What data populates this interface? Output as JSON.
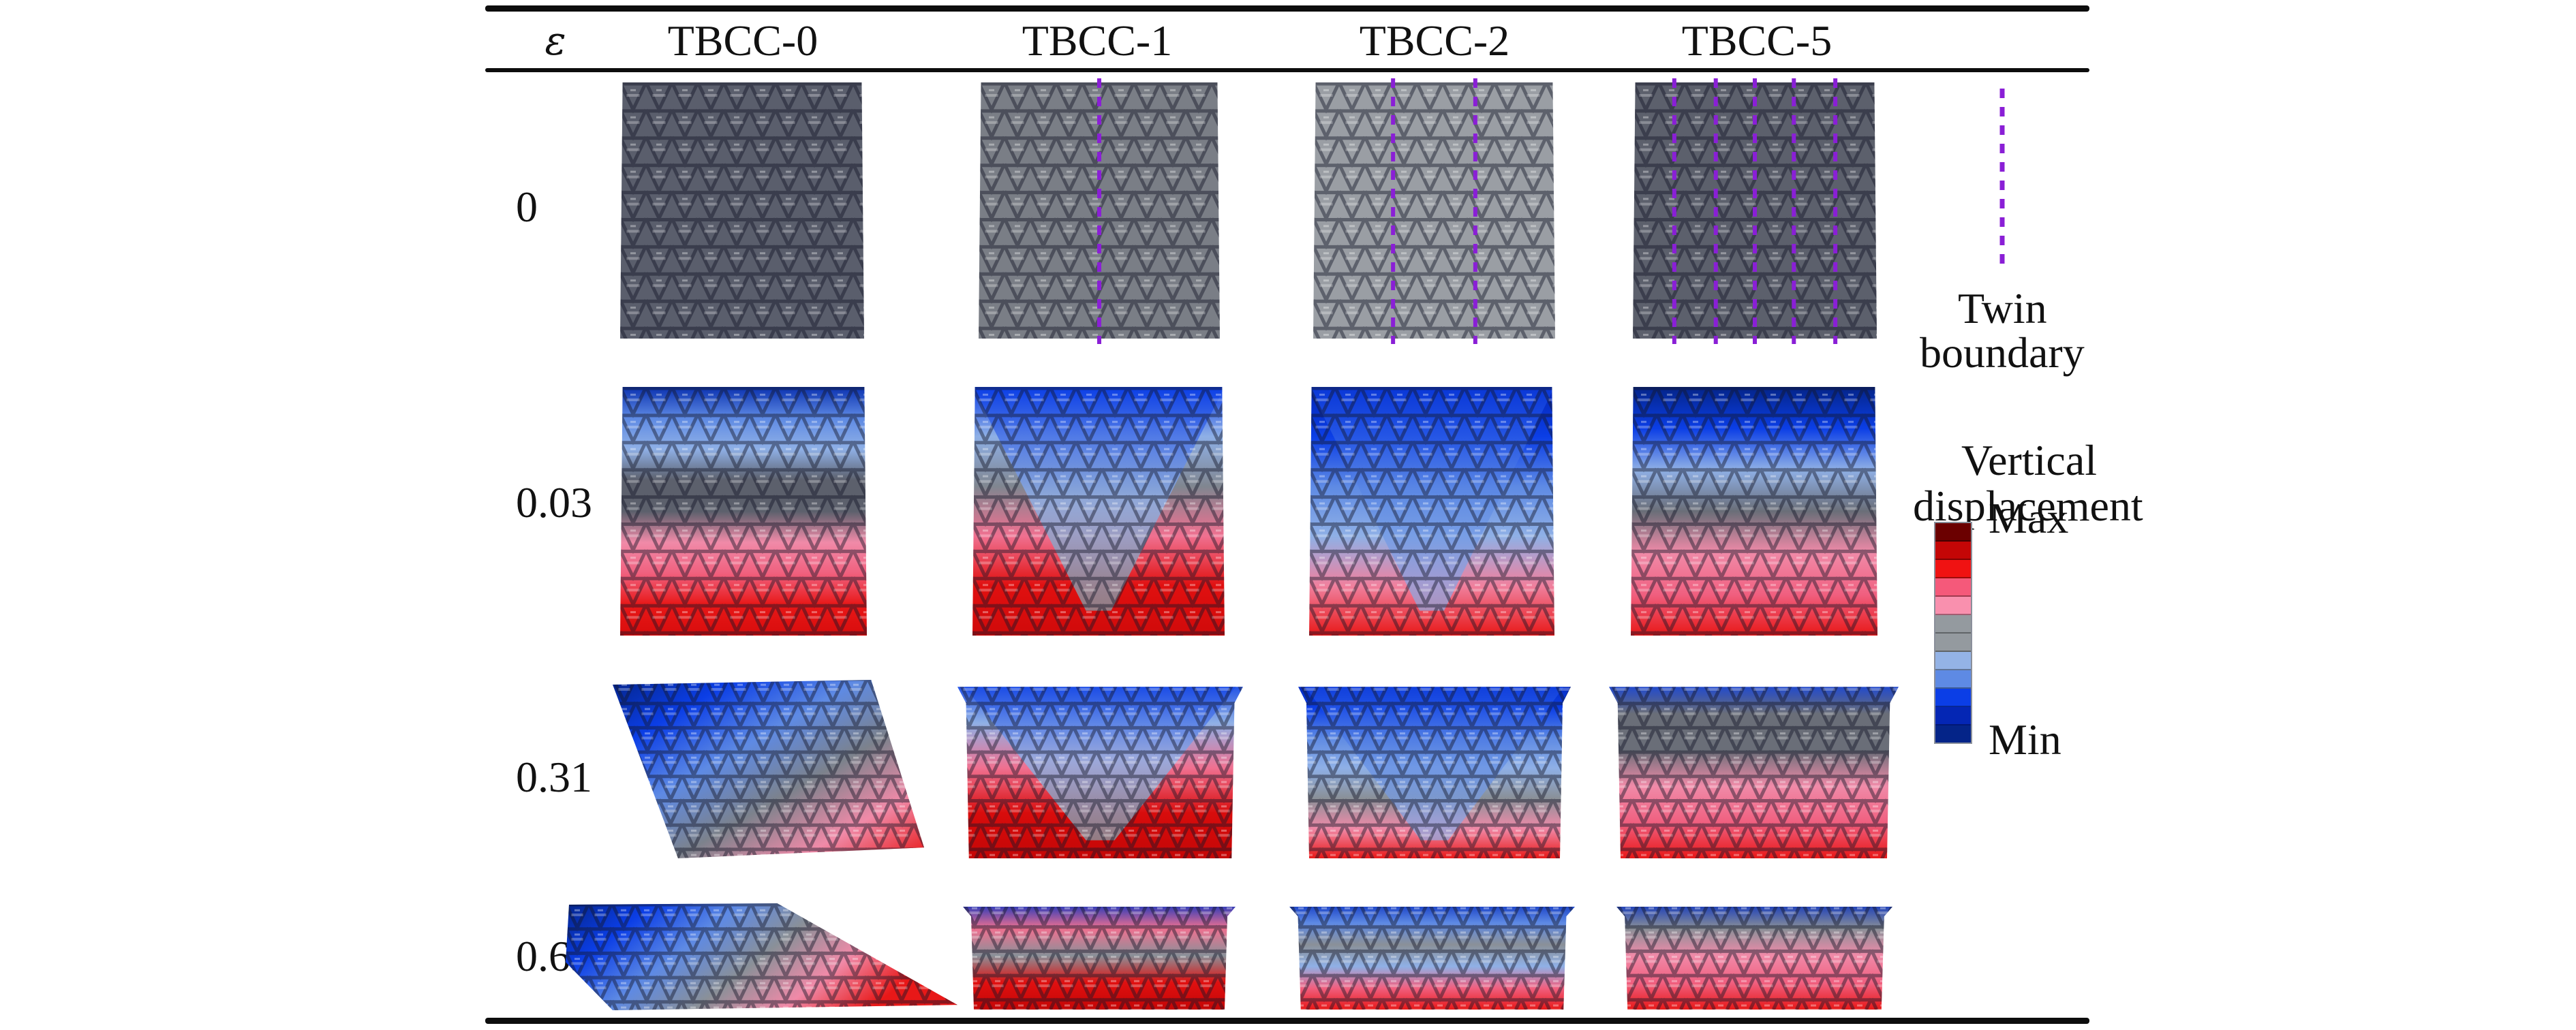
{
  "figure": {
    "strain_symbol": "ε",
    "columns": [
      "TBCC-0",
      "TBCC-1",
      "TBCC-2",
      "TBCC-5"
    ],
    "rows": [
      {
        "strain": "0"
      },
      {
        "strain": "0.03"
      },
      {
        "strain": "0.31"
      },
      {
        "strain": "0.63"
      }
    ],
    "twin_boundary_counts": {
      "TBCC-0": 0,
      "TBCC-1": 1,
      "TBCC-2": 2,
      "TBCC-5": 5
    }
  },
  "legend": {
    "twin_boundary_label_line1": "Twin",
    "twin_boundary_label_line2": "boundary",
    "twin_boundary_color": "#8a1fd6",
    "colorbar_title_line1": "Vertical",
    "colorbar_title_line2": "displacement",
    "colorbar_max_label": "Max",
    "colorbar_min_label": "Min",
    "colorbar_bands_max_to_min": [
      "#6b0000",
      "#c40606",
      "#f01212",
      "#f5597a",
      "#f990ae",
      "#949a9f",
      "#949a9f",
      "#94b3e6",
      "#5e8ae4",
      "#0b3ee6",
      "#0426b4",
      "#042488"
    ]
  },
  "colors": {
    "gray_light": "#a3a7ab",
    "gray_dark": "#4b4f5e",
    "rule": "#0d0d0d"
  },
  "panels": [
    {
      "row": 0,
      "col": 0,
      "palette": [
        "#5a5e6c",
        "#5a5e6c"
      ],
      "pattern": "uniform"
    },
    {
      "row": 0,
      "col": 1,
      "palette": [
        "#7a7e86",
        "#7a7e86"
      ],
      "pattern": "uniform"
    },
    {
      "row": 0,
      "col": 2,
      "palette": [
        "#9a9ea4",
        "#9a9ea4"
      ],
      "pattern": "uniform"
    },
    {
      "row": 0,
      "col": 3,
      "palette": [
        "#5c606c",
        "#5c606c"
      ],
      "pattern": "uniform"
    },
    {
      "row": 1,
      "col": 0,
      "palette": [
        "#0b32b0",
        "#5e8ae4",
        "#8fb0e6",
        "#5c606c",
        "#5c606c",
        "#f08aa8",
        "#f0607e",
        "#e81818",
        "#d80c0c"
      ],
      "pattern": "horizontal-bands"
    },
    {
      "row": 1,
      "col": 1,
      "palette": [
        "#0b3ee6",
        "#8fb0e6",
        "#808690",
        "#f07090",
        "#e01010",
        "#d00a0a"
      ],
      "pattern": "v-shape"
    },
    {
      "row": 1,
      "col": 2,
      "palette": [
        "#0426b4",
        "#0b3ee6",
        "#5e8ae4",
        "#8fb0e6",
        "#f0809e",
        "#e81818"
      ],
      "pattern": "v-shape-blue"
    },
    {
      "row": 1,
      "col": 3,
      "palette": [
        "#042488",
        "#0b3ee6",
        "#8fb0e6",
        "#6a6e78",
        "#f08aa8",
        "#f06080",
        "#e81818"
      ],
      "pattern": "horizontal-bands"
    },
    {
      "row": 2,
      "col": 0,
      "palette": [
        "#042488",
        "#0b3ee6",
        "#5e8ae4",
        "#7c828c",
        "#f08aa8",
        "#e81818"
      ],
      "pattern": "diagonal-sheared"
    },
    {
      "row": 2,
      "col": 1,
      "palette": [
        "#0b3ee6",
        "#8fb0e6",
        "#f07090",
        "#d80c0c",
        "#c40606"
      ],
      "pattern": "v-shape"
    },
    {
      "row": 2,
      "col": 2,
      "palette": [
        "#0426b4",
        "#0b3ee6",
        "#5e8ae4",
        "#8fb0e6",
        "#8a9098",
        "#f08aa8",
        "#e81818"
      ],
      "pattern": "v-shape-blue"
    },
    {
      "row": 2,
      "col": 3,
      "palette": [
        "#0b3ee6",
        "#6a6e78",
        "#6a6e78",
        "#f08aa8",
        "#f06080",
        "#e81818"
      ],
      "pattern": "horizontal-bands"
    },
    {
      "row": 3,
      "col": 0,
      "palette": [
        "#042488",
        "#0b3ee6",
        "#5e8ae4",
        "#8a9098",
        "#f08aa8",
        "#e81818"
      ],
      "pattern": "diagonal-flat"
    },
    {
      "row": 3,
      "col": 1,
      "palette": [
        "#0b32c0",
        "#f07090",
        "#8a9098",
        "#e01010",
        "#c40606"
      ],
      "pattern": "compressed"
    },
    {
      "row": 3,
      "col": 2,
      "palette": [
        "#0b32c0",
        "#5e8ae4",
        "#8a9098",
        "#8fb0e6",
        "#f06080",
        "#e81818"
      ],
      "pattern": "compressed"
    },
    {
      "row": 3,
      "col": 3,
      "palette": [
        "#0b32c0",
        "#8a9098",
        "#f08aa8",
        "#f06080",
        "#e81818"
      ],
      "pattern": "compressed"
    }
  ]
}
